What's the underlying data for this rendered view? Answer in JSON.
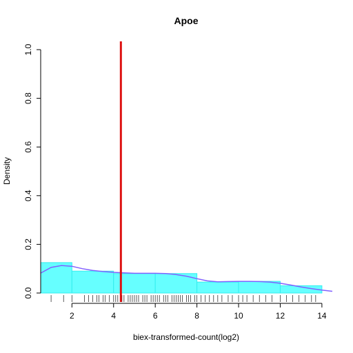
{
  "chart_data": {
    "type": "histogram",
    "title": "Apoe",
    "xlabel": "biex-transformed-count(log2)",
    "ylabel": "Density",
    "xlim": [
      0.5,
      14.5
    ],
    "ylim": [
      0,
      1.0
    ],
    "x_ticks": [
      2,
      4,
      6,
      8,
      10,
      12,
      14
    ],
    "y_ticks": [
      0.0,
      0.2,
      0.4,
      0.6,
      0.8,
      1.0
    ],
    "y_tick_labels": [
      "0.0",
      "0.2",
      "0.4",
      "0.6",
      "0.8",
      "1.0"
    ],
    "bins": [
      {
        "x0": 0.5,
        "x1": 2,
        "density": 0.125
      },
      {
        "x0": 2,
        "x1": 4,
        "density": 0.09
      },
      {
        "x0": 4,
        "x1": 6,
        "density": 0.08
      },
      {
        "x0": 6,
        "x1": 8,
        "density": 0.08
      },
      {
        "x0": 8,
        "x1": 10,
        "density": 0.045
      },
      {
        "x0": 10,
        "x1": 12,
        "density": 0.048
      },
      {
        "x0": 12,
        "x1": 14,
        "density": 0.03
      }
    ],
    "density_curve": {
      "x": [
        0.5,
        1.0,
        1.5,
        2.0,
        2.5,
        3.0,
        3.5,
        4.0,
        4.5,
        5.0,
        5.5,
        6.0,
        6.5,
        7.0,
        7.5,
        8.0,
        8.5,
        9.0,
        9.5,
        10.0,
        10.5,
        11.0,
        11.5,
        12.0,
        12.5,
        13.0,
        13.5,
        14.0,
        14.5
      ],
      "y": [
        0.082,
        0.105,
        0.113,
        0.11,
        0.1,
        0.093,
        0.088,
        0.085,
        0.083,
        0.081,
        0.081,
        0.081,
        0.08,
        0.076,
        0.069,
        0.059,
        0.05,
        0.046,
        0.047,
        0.048,
        0.048,
        0.047,
        0.045,
        0.04,
        0.033,
        0.025,
        0.018,
        0.012,
        0.007
      ]
    },
    "rug": [
      1.0,
      1.6,
      2.0,
      2.6,
      2.8,
      3.0,
      3.2,
      3.3,
      3.5,
      3.6,
      3.8,
      4.0,
      4.1,
      4.2,
      4.4,
      4.5,
      4.7,
      4.8,
      4.9,
      5.0,
      5.1,
      5.2,
      5.4,
      5.5,
      5.6,
      5.8,
      5.9,
      6.0,
      6.1,
      6.2,
      6.4,
      6.5,
      6.6,
      6.8,
      6.9,
      7.0,
      7.1,
      7.2,
      7.3,
      7.5,
      7.6,
      7.7,
      7.9,
      8.0,
      8.2,
      8.4,
      8.6,
      8.8,
      9.0,
      9.2,
      9.5,
      9.7,
      10.0,
      10.2,
      10.4,
      10.7,
      11.0,
      11.3,
      11.6,
      12.0,
      12.3,
      12.6,
      12.9,
      13.2,
      13.5,
      13.7
    ],
    "threshold_x": 4.35,
    "colors": {
      "bars_fill": "#66ffff",
      "bars_stroke": "#33eeee",
      "density_line": "#8060ff",
      "threshold": "#dd1111",
      "axis": "#000000",
      "rug": "#333333"
    },
    "grid": false,
    "legend": "none"
  }
}
